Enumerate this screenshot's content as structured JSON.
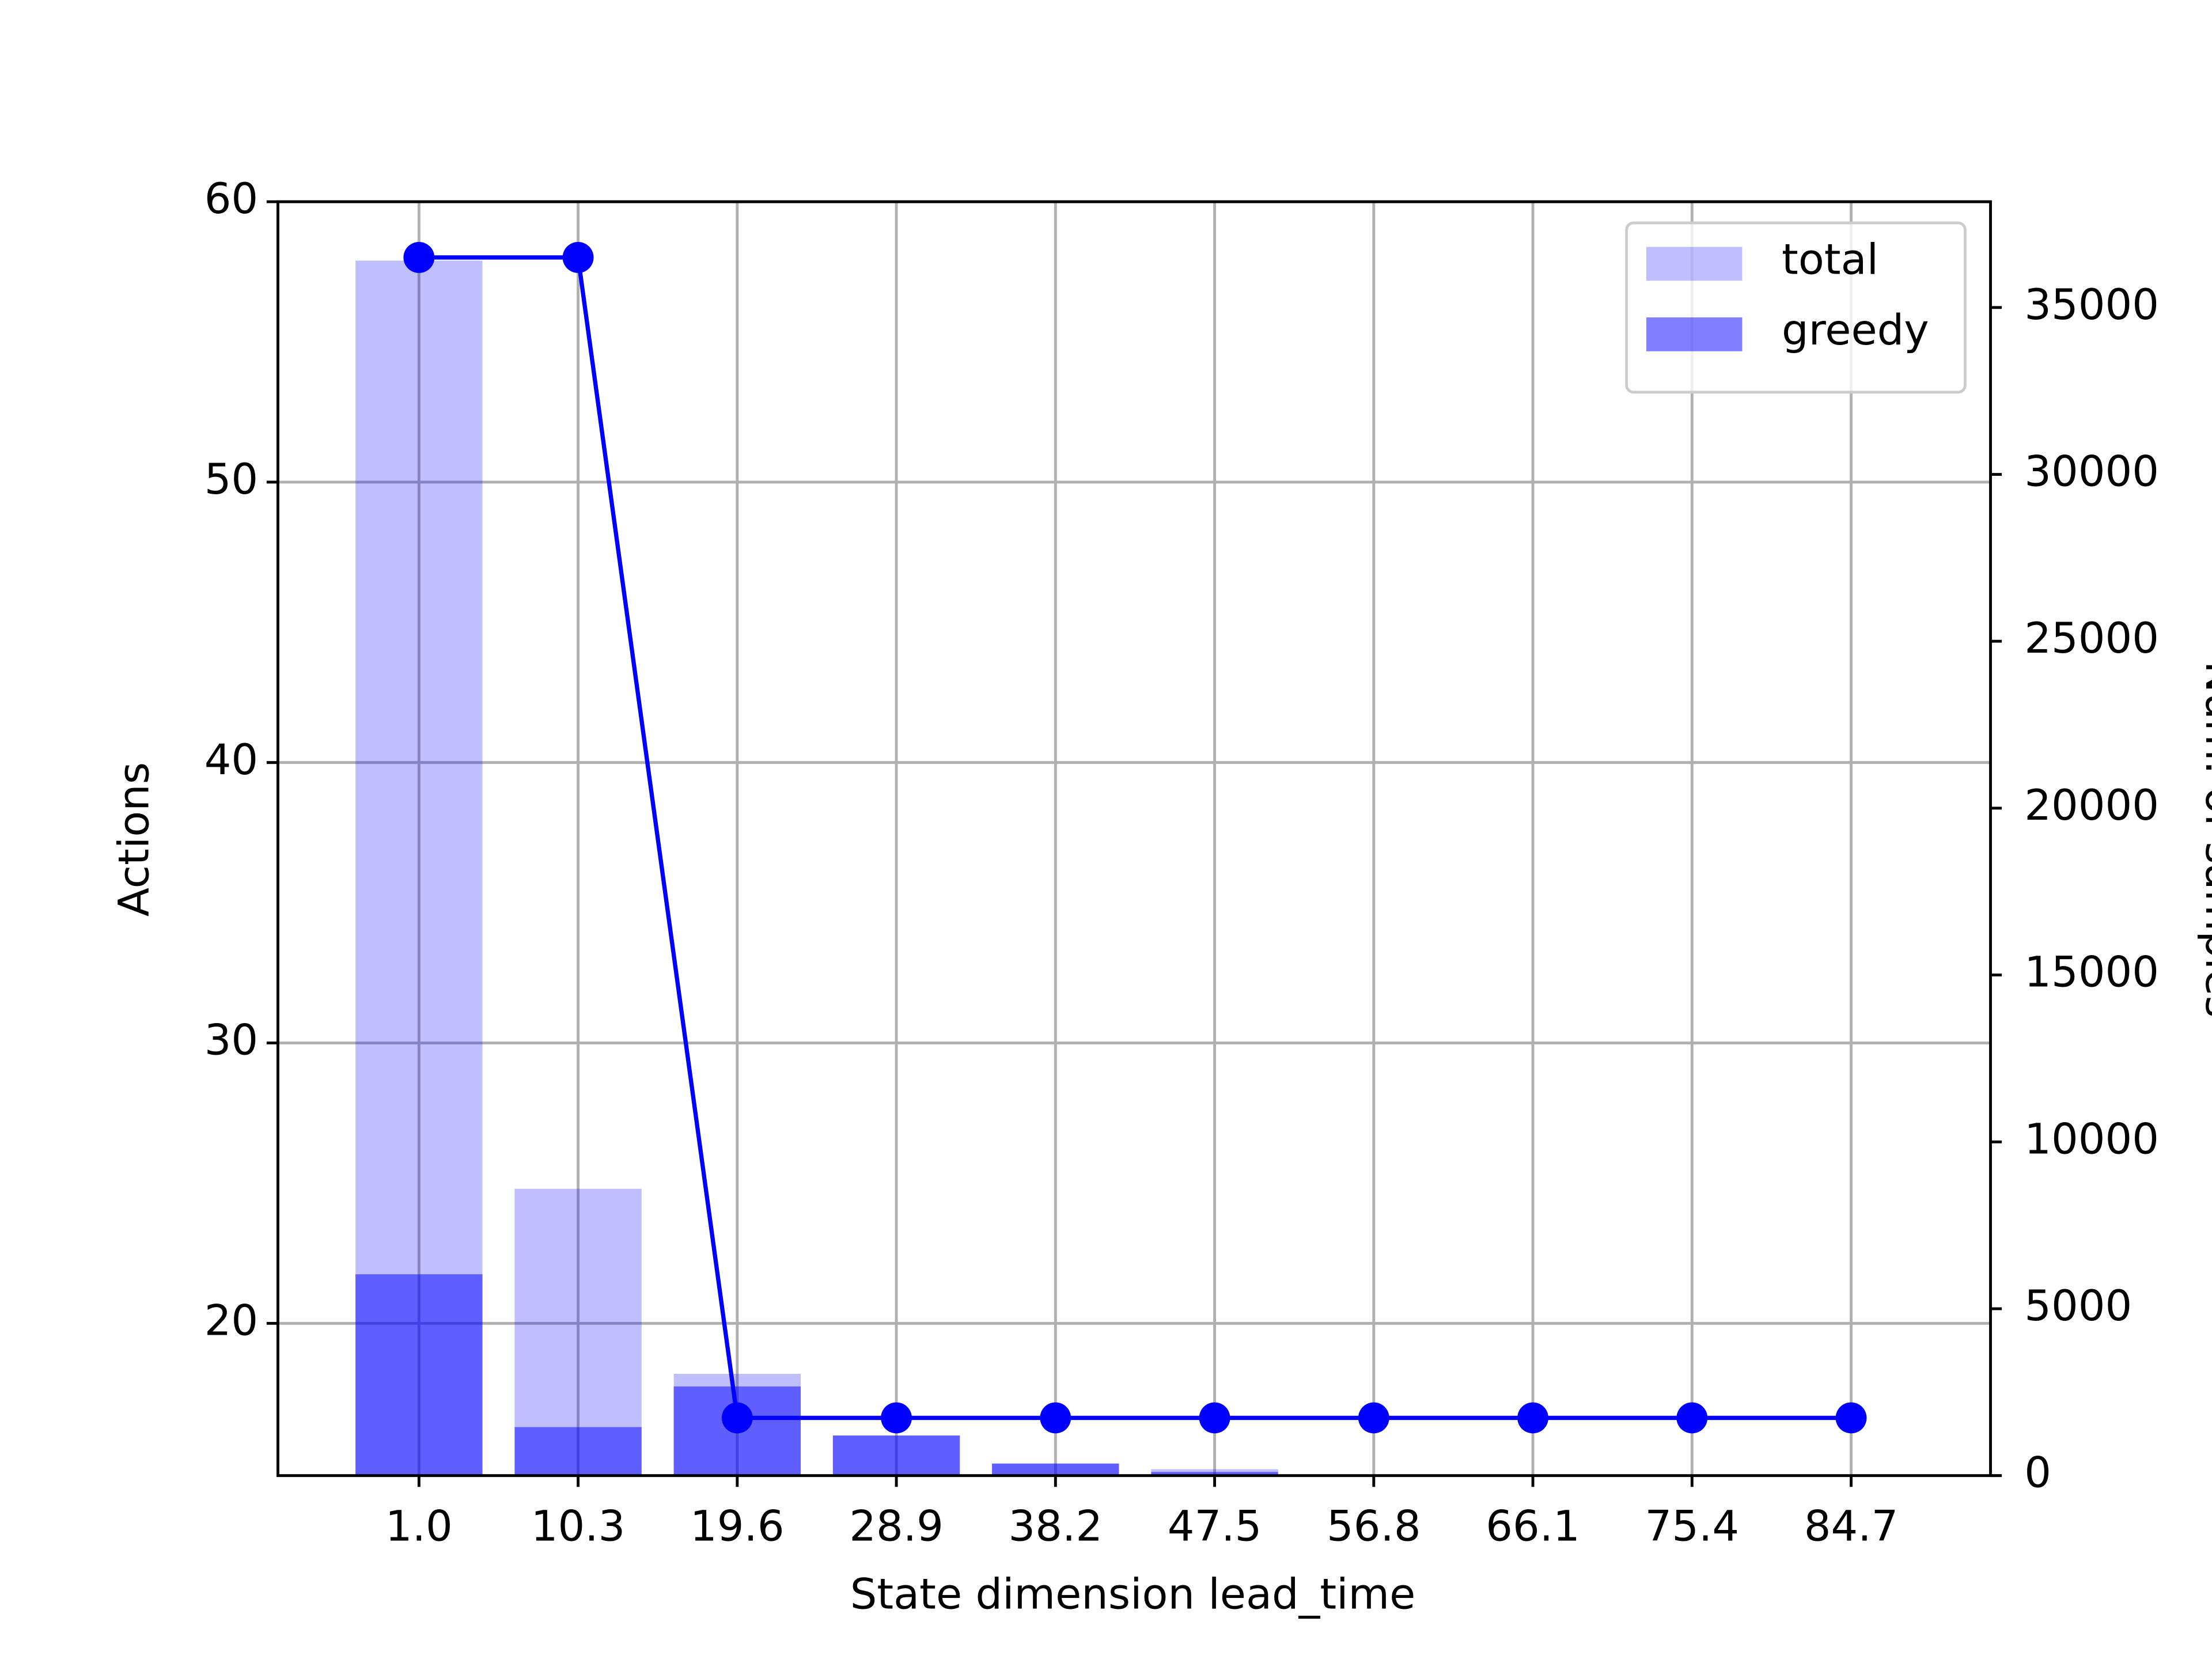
{
  "chart_data": {
    "type": "bar",
    "xlabel": "State dimension lead_time",
    "ylabel": "Actions",
    "y2label": "Num. of samples",
    "categories": [
      "1.0",
      "10.3",
      "19.6",
      "28.9",
      "38.2",
      "47.5",
      "56.8",
      "66.1",
      "75.4",
      "84.7"
    ],
    "series": [
      {
        "name": "total",
        "type": "bar",
        "color": "#0000ff",
        "opacity": 0.25,
        "values": [
          57.9,
          24.8,
          18.2,
          16.0,
          15.0,
          14.8,
          14.6,
          null,
          null,
          null
        ]
      },
      {
        "name": "greedy",
        "type": "bar",
        "color": "#0000ff",
        "opacity": 0.5,
        "values": [
          21.75,
          16.3,
          17.75,
          16.0,
          15.0,
          14.7,
          14.6,
          null,
          null,
          null
        ]
      },
      {
        "type": "line",
        "axis": "y2",
        "color": "#0000ff",
        "values": [
          36500,
          36500,
          1730,
          1730,
          1730,
          1730,
          1730,
          1730,
          1730,
          1730
        ]
      }
    ],
    "ylim": [
      14.57,
      60
    ],
    "yticks": [
      20,
      30,
      40,
      50,
      60
    ],
    "y2lim": [
      0,
      38170
    ],
    "y2ticks": [
      0,
      5000,
      10000,
      15000,
      20000,
      25000,
      30000,
      35000
    ],
    "grid": true,
    "legend": "upper right"
  }
}
